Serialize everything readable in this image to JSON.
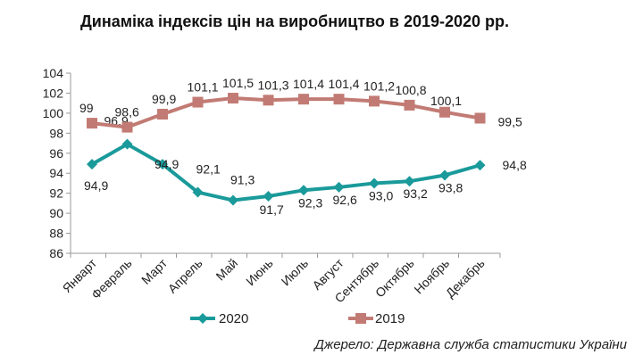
{
  "chart_data": {
    "type": "line",
    "title": "Динаміка індексів цін на виробництво в 2019-2020 рр.",
    "source": "Джерело: Державна служба статистики України",
    "categories": [
      "Январт",
      "Февраль",
      "Март",
      "Апрель",
      "Май",
      "Июнь",
      "Июль",
      "Авгуcт",
      "Сентябрь",
      "Октябрь",
      "Ноябрь",
      "Декабрь"
    ],
    "ylim": [
      86,
      104
    ],
    "yticks": [
      86,
      88,
      90,
      92,
      94,
      96,
      98,
      100,
      102,
      104
    ],
    "grid": false,
    "legend": "bottom",
    "series": [
      {
        "name": "2020",
        "color": "#1a9a9a",
        "marker": "diamond",
        "values": [
          94.9,
          96.9,
          94.9,
          92.1,
          91.3,
          91.7,
          92.3,
          92.6,
          93.0,
          93.2,
          93.8,
          94.8
        ],
        "labels": [
          "94,9",
          "96,9",
          "94,9",
          "92,1",
          "91,3",
          "91,7",
          "92,3",
          "92,6",
          "93,0",
          "93,2",
          "93,8",
          "94,8"
        ]
      },
      {
        "name": "2019",
        "color": "#c27b74",
        "marker": "square",
        "values": [
          99.0,
          98.6,
          99.9,
          101.1,
          101.5,
          101.3,
          101.4,
          101.4,
          101.2,
          100.8,
          100.1,
          99.5
        ],
        "labels": [
          "99",
          "98,6",
          "99,9",
          "101,1",
          "101,5",
          "101,3",
          "101,4",
          "101,4",
          "101,2",
          "100,8",
          "100,1",
          "99,5"
        ]
      }
    ]
  }
}
